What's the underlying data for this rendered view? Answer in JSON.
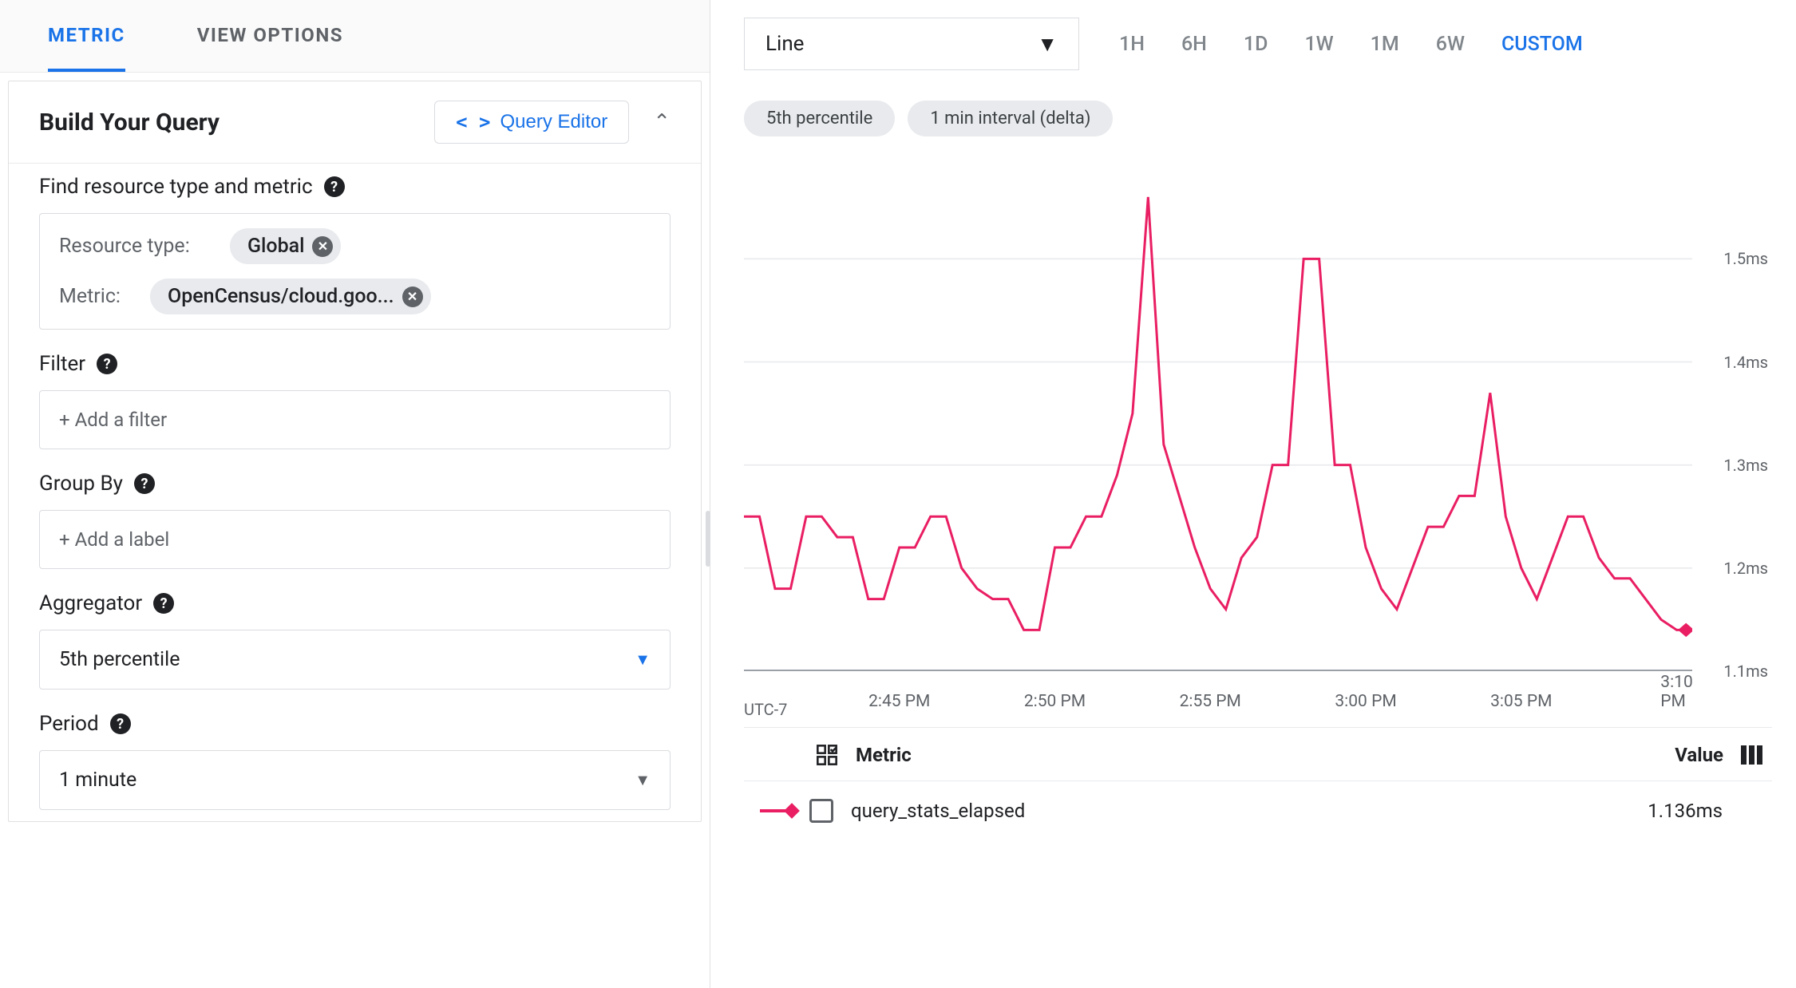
{
  "tabs": {
    "metric": "METRIC",
    "view_options": "VIEW OPTIONS",
    "active": "metric"
  },
  "query_header": {
    "title": "Build Your Query",
    "editor_button": "Query Editor"
  },
  "sections": {
    "find": {
      "label": "Find resource type and metric",
      "resource_type_key": "Resource type:",
      "resource_type_value": "Global",
      "metric_key": "Metric:",
      "metric_value": "OpenCensus/cloud.goo..."
    },
    "filter": {
      "label": "Filter",
      "placeholder": "+ Add a filter"
    },
    "group_by": {
      "label": "Group By",
      "placeholder": "+ Add a label"
    },
    "aggregator": {
      "label": "Aggregator",
      "value": "5th percentile"
    },
    "period": {
      "label": "Period",
      "value": "1 minute"
    }
  },
  "chart_controls": {
    "chart_type": "Line",
    "time_ranges": [
      "1H",
      "6H",
      "1D",
      "1W",
      "1M",
      "6W",
      "CUSTOM"
    ],
    "time_range_active": "CUSTOM"
  },
  "pills": [
    "5th percentile",
    "1 min interval (delta)"
  ],
  "chart": {
    "type": "line",
    "line_color": "#e91e63",
    "line_width": 3,
    "background_color": "#ffffff",
    "grid_color": "#e8eaed",
    "axis_color": "#9aa0a6",
    "tick_font_color": "#5f6368",
    "tick_fontsize": 20,
    "ylim": [
      1.1,
      1.58
    ],
    "y_ticks": [
      {
        "value": 1.1,
        "label": "1.1ms"
      },
      {
        "value": 1.2,
        "label": "1.2ms"
      },
      {
        "value": 1.3,
        "label": "1.3ms"
      },
      {
        "value": 1.4,
        "label": "1.4ms"
      },
      {
        "value": 1.5,
        "label": "1.5ms"
      }
    ],
    "x_domain_minutes": [
      160,
      190.5
    ],
    "x_ticks": [
      {
        "minutes": 160.5,
        "label": "UTC-7",
        "anchor": "start"
      },
      {
        "minutes": 165,
        "label": "2:45 PM"
      },
      {
        "minutes": 170,
        "label": "2:50 PM"
      },
      {
        "minutes": 175,
        "label": "2:55 PM"
      },
      {
        "minutes": 180,
        "label": "3:00 PM"
      },
      {
        "minutes": 185,
        "label": "3:05 PM"
      },
      {
        "minutes": 190,
        "label": "3:10 PM"
      }
    ],
    "series": {
      "name": "query_stats_elapsed",
      "value_display": "1.136ms",
      "points": [
        [
          160.0,
          1.25
        ],
        [
          160.5,
          1.25
        ],
        [
          161.0,
          1.18
        ],
        [
          161.5,
          1.18
        ],
        [
          162.0,
          1.25
        ],
        [
          162.5,
          1.25
        ],
        [
          163.0,
          1.23
        ],
        [
          163.5,
          1.23
        ],
        [
          164.0,
          1.17
        ],
        [
          164.5,
          1.17
        ],
        [
          165.0,
          1.22
        ],
        [
          165.5,
          1.22
        ],
        [
          166.0,
          1.25
        ],
        [
          166.5,
          1.25
        ],
        [
          167.0,
          1.2
        ],
        [
          167.5,
          1.18
        ],
        [
          168.0,
          1.17
        ],
        [
          168.5,
          1.17
        ],
        [
          169.0,
          1.14
        ],
        [
          169.5,
          1.14
        ],
        [
          170.0,
          1.22
        ],
        [
          170.5,
          1.22
        ],
        [
          171.0,
          1.25
        ],
        [
          171.5,
          1.25
        ],
        [
          172.0,
          1.29
        ],
        [
          172.5,
          1.35
        ],
        [
          173.0,
          1.56
        ],
        [
          173.5,
          1.32
        ],
        [
          174.0,
          1.27
        ],
        [
          174.5,
          1.22
        ],
        [
          175.0,
          1.18
        ],
        [
          175.5,
          1.16
        ],
        [
          176.0,
          1.21
        ],
        [
          176.5,
          1.23
        ],
        [
          177.0,
          1.3
        ],
        [
          177.5,
          1.3
        ],
        [
          178.0,
          1.5
        ],
        [
          178.5,
          1.5
        ],
        [
          179.0,
          1.3
        ],
        [
          179.5,
          1.3
        ],
        [
          180.0,
          1.22
        ],
        [
          180.5,
          1.18
        ],
        [
          181.0,
          1.16
        ],
        [
          181.5,
          1.2
        ],
        [
          182.0,
          1.24
        ],
        [
          182.5,
          1.24
        ],
        [
          183.0,
          1.27
        ],
        [
          183.5,
          1.27
        ],
        [
          184.0,
          1.37
        ],
        [
          184.5,
          1.25
        ],
        [
          185.0,
          1.2
        ],
        [
          185.5,
          1.17
        ],
        [
          186.0,
          1.21
        ],
        [
          186.5,
          1.25
        ],
        [
          187.0,
          1.25
        ],
        [
          187.5,
          1.21
        ],
        [
          188.0,
          1.19
        ],
        [
          188.5,
          1.19
        ],
        [
          189.0,
          1.17
        ],
        [
          189.5,
          1.15
        ],
        [
          190.0,
          1.14
        ],
        [
          190.3,
          1.14
        ]
      ],
      "end_marker_shape": "diamond"
    }
  },
  "legend": {
    "header_metric": "Metric",
    "header_value": "Value"
  }
}
